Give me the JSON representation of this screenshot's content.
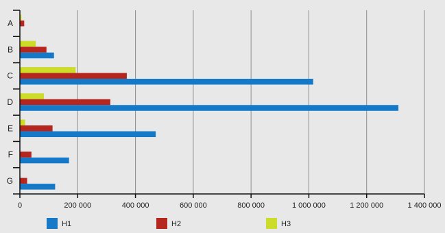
{
  "chart_data": {
    "type": "bar",
    "orientation": "horizontal",
    "title": "",
    "xlabel": "",
    "ylabel": "",
    "categories": [
      "A",
      "B",
      "C",
      "D",
      "E",
      "F",
      "G"
    ],
    "xlim": [
      0,
      1400000
    ],
    "xticks": [
      0,
      200000,
      400000,
      600000,
      800000,
      1000000,
      1200000,
      1400000
    ],
    "xtick_labels": [
      "0",
      "200 000",
      "400 000",
      "600 000",
      "800 000",
      "1 000 000",
      "1 200 000",
      "1 400 000"
    ],
    "grid": "vertical",
    "legend_position": "bottom",
    "series": [
      {
        "name": "H1",
        "color": "#1579c8",
        "values": [
          0,
          118000,
          1015000,
          1310000,
          470000,
          170000,
          122000
        ]
      },
      {
        "name": "H2",
        "color": "#b5261e",
        "values": [
          15000,
          92000,
          370000,
          313000,
          113000,
          40000,
          25000
        ]
      },
      {
        "name": "H3",
        "color": "#cddc29",
        "values": [
          5000,
          55000,
          193000,
          83000,
          18000,
          0,
          0
        ]
      }
    ]
  }
}
